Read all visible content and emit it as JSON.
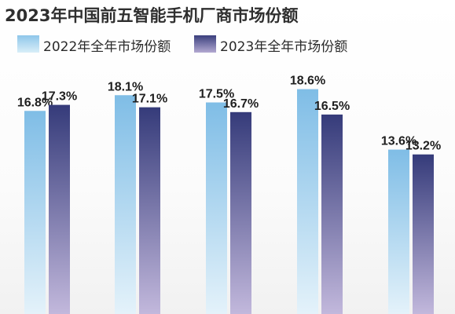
{
  "chart_data": {
    "type": "bar",
    "title": "2023年中国前五智能手机厂商市场份额",
    "categories": [
      "",
      "",
      "",
      "",
      ""
    ],
    "series": [
      {
        "name": "2022年全年市场份额",
        "values": [
          16.8,
          18.1,
          17.5,
          18.6,
          13.6
        ],
        "labels": [
          "16.8%",
          "18.1%",
          "17.5%",
          "18.6%",
          "13.6%"
        ],
        "color": "#7fbde6"
      },
      {
        "name": "2023年全年市场份额",
        "values": [
          17.3,
          17.1,
          16.7,
          16.5,
          13.2
        ],
        "labels": [
          "17.3%",
          "17.1%",
          "16.7%",
          "16.5%",
          "13.2%"
        ],
        "color": "#3a3f7d"
      }
    ],
    "unit": "%",
    "legend": "top-left",
    "grid": false
  }
}
